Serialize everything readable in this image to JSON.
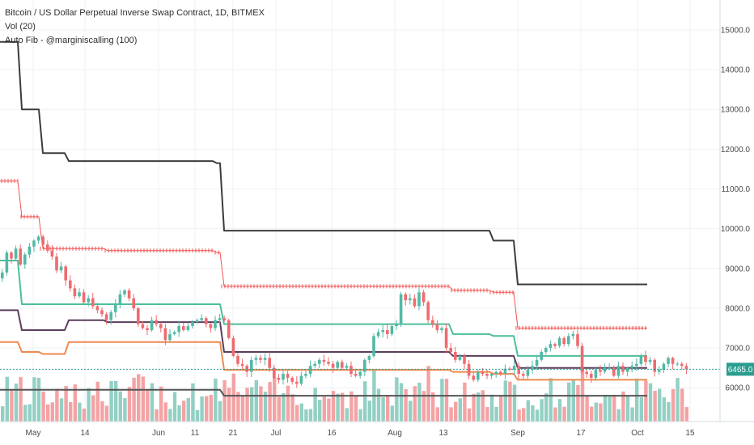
{
  "legend": {
    "title": "Bitcoin / US Dollar Perpetual Inverse Swap Contract, 1D, BITMEX",
    "vol": "Vol (20)",
    "autofib": "Auto Fib - @marginiscalling (100)"
  },
  "colors": {
    "up": "#53b9a6",
    "down": "#ef6b6f",
    "vol_up": "#93d0c4",
    "vol_down": "#f4a3a5",
    "fib_top": "#3c3c3c",
    "fib_red": "#ef5350",
    "fib_teal": "#4dbf9a",
    "fib_purple": "#5b3e5c",
    "fib_orange": "#ee8a4e",
    "fib_bottom": "#555555",
    "last_line": "#2a9d90",
    "grid": "#eef1f5"
  },
  "chart_data": {
    "type": "candlestick",
    "title": "Bitcoin / US Dollar Perpetual Inverse Swap Contract, 1D, BITMEX",
    "ylim": [
      5150,
      15650
    ],
    "y_ticks": [
      "15000.0",
      "14000.0",
      "13000.0",
      "12000.0",
      "11000.0",
      "10000.0",
      "9000.0",
      "8000.0",
      "7000.0",
      "6000.0"
    ],
    "x_ticks": [
      "May",
      "14",
      "Jun",
      "11",
      "21",
      "Jul",
      "16",
      "Aug",
      "13",
      "Sep",
      "17",
      "Oct",
      "15"
    ],
    "last_price": "6465.0",
    "volume_series": "Vol (20)",
    "closes": [
      8900,
      9400,
      9250,
      9500,
      9100,
      9350,
      9550,
      9700,
      9800,
      9600,
      9450,
      9300,
      8950,
      9050,
      8700,
      8500,
      8300,
      8400,
      8150,
      8250,
      8050,
      7950,
      7850,
      7700,
      7900,
      8100,
      8350,
      8450,
      8250,
      8000,
      7600,
      7500,
      7450,
      7700,
      7600,
      7500,
      7200,
      7350,
      7400,
      7550,
      7450,
      7550,
      7650,
      7700,
      7750,
      7600,
      7500,
      7700,
      7750,
      7700,
      7250,
      6800,
      6600,
      6550,
      6400,
      6700,
      6750,
      6700,
      6750,
      6500,
      6250,
      6200,
      6350,
      6250,
      6150,
      6100,
      6300,
      6350,
      6550,
      6600,
      6700,
      6650,
      6600,
      6500,
      6650,
      6500,
      6550,
      6350,
      6300,
      6400,
      6700,
      6800,
      7300,
      7400,
      7450,
      7350,
      7550,
      7600,
      8350,
      8200,
      8250,
      8050,
      8400,
      8150,
      7700,
      7600,
      7450,
      7500,
      7000,
      6900,
      6700,
      6800,
      6600,
      6300,
      6200,
      6400,
      6350,
      6300,
      6350,
      6400,
      6350,
      6480,
      6450,
      6550,
      6350,
      6300,
      6450,
      6550,
      6700,
      6900,
      7000,
      7100,
      7050,
      7250,
      7100,
      7300,
      7350,
      7050,
      6400,
      6350,
      6250,
      6450,
      6400,
      6500,
      6500,
      6300,
      6550,
      6400,
      6500,
      6550,
      6600,
      6800,
      6650,
      6700,
      6400,
      6450,
      6600,
      6750,
      6600,
      6600,
      6550,
      6465
    ],
    "fib_levels": [
      {
        "id": "level-1",
        "values": [
          14700,
          13000,
          11900,
          11700,
          11700,
          11650,
          9950,
          9950,
          9950,
          9700,
          8600,
          8500,
          8500
        ]
      },
      {
        "id": "level-2",
        "values": [
          11200,
          10300,
          9500,
          9500,
          9450,
          9400,
          8550,
          8450,
          8450,
          8400,
          7500,
          7450,
          7450
        ]
      },
      {
        "id": "level-3",
        "values": [
          9200,
          8100,
          8100,
          8100,
          8100,
          8100,
          7600,
          7350,
          7350,
          7300,
          6800,
          6750,
          6800
        ]
      },
      {
        "id": "level-4",
        "values": [
          7950,
          7450,
          7450,
          7700,
          7650,
          7650,
          6900,
          6800,
          6800,
          6800,
          6500,
          6450,
          6450
        ]
      },
      {
        "id": "level-5",
        "values": [
          7150,
          6900,
          6850,
          7150,
          7150,
          7150,
          6450,
          6400,
          6400,
          6350,
          6200,
          6150,
          6200
        ]
      },
      {
        "id": "level-6",
        "values": [
          5950,
          5950,
          5950,
          5950,
          5950,
          5950,
          5800,
          5800,
          5800,
          5800,
          5800,
          5800,
          5800
        ]
      }
    ]
  }
}
